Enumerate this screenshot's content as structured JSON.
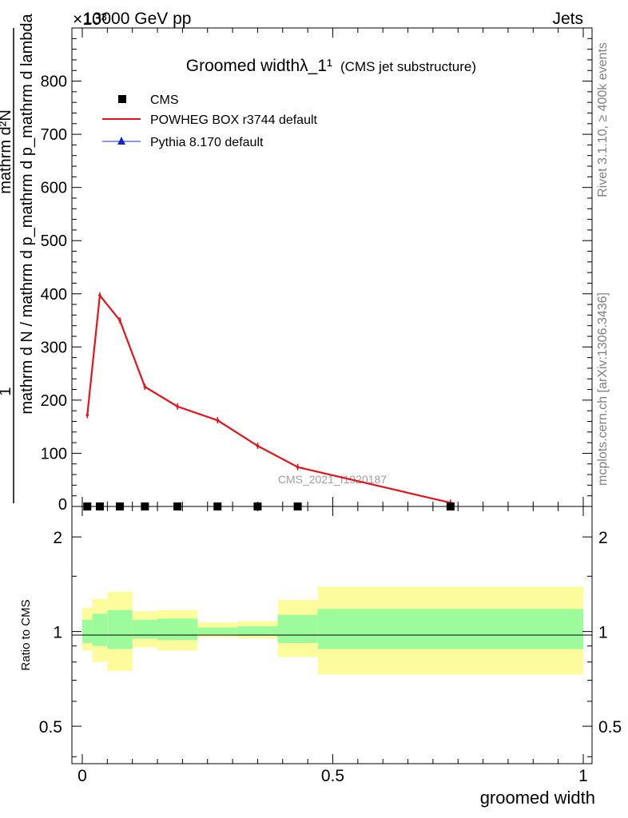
{
  "header": {
    "left": "13000 GeV pp",
    "right": "Jets",
    "exponent": "×10³"
  },
  "side_labels": {
    "rivet": "Rivet 3.1.10, ≥ 400k events",
    "mcplots": "mcplots.cern.ch [arXiv:1306.3436]"
  },
  "watermark": "CMS_2021_I1920187",
  "chart_data": [
    {
      "type": "line",
      "title": "Groomed widthλ_1¹",
      "subtitle": "(CMS jet substructure)",
      "xlabel": "groomed width",
      "ylabel_top": "1",
      "ylabel_bottom": "mathrm d N / mathrm d p_mathrm d p_mathrm d lambda",
      "ylabel_numer": "mathrm d²N",
      "ylim": [
        0,
        900
      ],
      "xlim": [
        -0.02,
        1.0
      ],
      "y_ticks": [
        "100",
        "200",
        "300",
        "400",
        "500",
        "600",
        "700",
        "800"
      ],
      "y_tick_values": [
        100,
        200,
        300,
        400,
        500,
        600,
        700,
        800
      ],
      "y_zero_label": "0",
      "legend": [
        {
          "label": "CMS",
          "color": "#000000",
          "marker": "square"
        },
        {
          "label": "POWHEG BOX r3744 default",
          "color": "#e8121a",
          "marker": "line"
        },
        {
          "label": "Pythia 8.170 default",
          "color": "#1428c8",
          "marker": "triangle"
        }
      ],
      "series": [
        {
          "name": "POWHEG BOX r3744 default",
          "color": "#e8121a",
          "x": [
            0.01,
            0.035,
            0.075,
            0.125,
            0.19,
            0.27,
            0.35,
            0.43,
            0.735
          ],
          "y": [
            172,
            397,
            350,
            225,
            188,
            162,
            114,
            74,
            7
          ]
        },
        {
          "name": "CMS",
          "color": "#000000",
          "x": [
            0.01,
            0.035,
            0.075,
            0.125,
            0.19,
            0.27,
            0.35,
            0.43,
            0.735
          ],
          "y": [
            0,
            0,
            0,
            0,
            0,
            0,
            0,
            0,
            0
          ]
        }
      ]
    },
    {
      "type": "area",
      "ylabel": "Ratio to CMS",
      "ylim": [
        0.38,
        2.5
      ],
      "log_scale": true,
      "y_ticks": [
        "0.5",
        "1",
        "2"
      ],
      "y_tick_values": [
        0.5,
        1,
        2
      ],
      "x_ticks": [
        "0",
        "0.5",
        "1"
      ],
      "x_tick_values": [
        0,
        0.5,
        1
      ],
      "band_colors": {
        "inner": "#9cfc9c",
        "outer": "#fcfc9c"
      },
      "bins": [
        {
          "x0": 0.0,
          "x1": 0.02,
          "inner": [
            0.92,
            1.09
          ],
          "outer": [
            0.87,
            1.19
          ]
        },
        {
          "x0": 0.02,
          "x1": 0.05,
          "inner": [
            0.9,
            1.14
          ],
          "outer": [
            0.8,
            1.27
          ]
        },
        {
          "x0": 0.05,
          "x1": 0.1,
          "inner": [
            0.88,
            1.17
          ],
          "outer": [
            0.75,
            1.34
          ]
        },
        {
          "x0": 0.1,
          "x1": 0.15,
          "inner": [
            0.95,
            1.09
          ],
          "outer": [
            0.89,
            1.16
          ]
        },
        {
          "x0": 0.15,
          "x1": 0.23,
          "inner": [
            0.94,
            1.1
          ],
          "outer": [
            0.87,
            1.17
          ]
        },
        {
          "x0": 0.23,
          "x1": 0.31,
          "inner": [
            0.98,
            1.03
          ],
          "outer": [
            0.96,
            1.07
          ]
        },
        {
          "x0": 0.31,
          "x1": 0.39,
          "inner": [
            0.97,
            1.04
          ],
          "outer": [
            0.95,
            1.08
          ]
        },
        {
          "x0": 0.39,
          "x1": 0.47,
          "inner": [
            0.92,
            1.13
          ],
          "outer": [
            0.83,
            1.26
          ]
        },
        {
          "x0": 0.47,
          "x1": 1.0,
          "inner": [
            0.88,
            1.18
          ],
          "outer": [
            0.73,
            1.39
          ]
        }
      ]
    }
  ]
}
